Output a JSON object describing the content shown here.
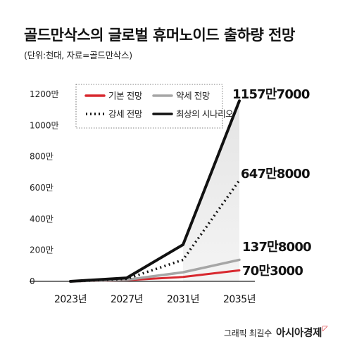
{
  "header": {
    "title": "골드만삭스의 글로벌 휴머노이드 출하량 전망",
    "subtitle": "(단위:천대, 자료=골드만삭스)"
  },
  "credit": {
    "text": "그래픽 최길수",
    "brand": "아시아경제"
  },
  "chart_data": {
    "type": "line",
    "categories": [
      "2023년",
      "2027년",
      "2031년",
      "2035년"
    ],
    "x": [
      2023,
      2027,
      2031,
      2035
    ],
    "ylim": [
      0,
      12000000
    ],
    "yticks": [
      0,
      2000000,
      4000000,
      6000000,
      8000000,
      10000000,
      12000000
    ],
    "ytick_labels": [
      "0",
      "200만",
      "400만",
      "600만",
      "800만",
      "1000만",
      "1200만"
    ],
    "grid": false,
    "legend_placement": "top-left",
    "series": [
      {
        "name": "기본 전망",
        "values": [
          0,
          80000,
          280000,
          703000
        ],
        "color": "#d8282f",
        "style": "solid",
        "end_label": "70만3000"
      },
      {
        "name": "약세 전망",
        "values": [
          0,
          100000,
          580000,
          1378000
        ],
        "color": "#a6a6a6",
        "style": "solid",
        "end_label": "137만8000"
      },
      {
        "name": "강세 전망",
        "values": [
          0,
          160000,
          1380000,
          6478000
        ],
        "color": "#111111",
        "style": "dotted",
        "end_label": "647만8000"
      },
      {
        "name": "최상의 시나리오",
        "values": [
          0,
          220000,
          2350000,
          11577000
        ],
        "color": "#111111",
        "style": "solid",
        "end_label": "1157만7000"
      }
    ]
  }
}
